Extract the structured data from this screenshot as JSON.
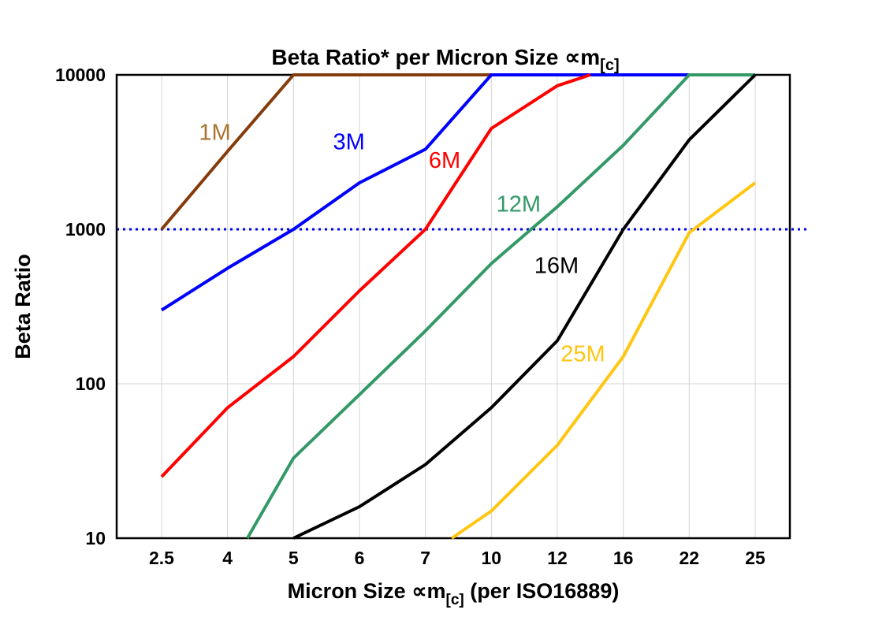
{
  "title": {
    "pre": "Beta Ratio* per Micron Size ",
    "sym": "∝m",
    "sub": "[c]"
  },
  "x_axis": {
    "label_pre": "Micron Size ",
    "label_sym": "∝m",
    "label_sub": "[c]",
    "label_post": " (per ISO16889)",
    "ticks": [
      "2.5",
      "4",
      "5",
      "6",
      "7",
      "10",
      "12",
      "16",
      "22",
      "25"
    ]
  },
  "y_axis": {
    "label": "Beta Ratio",
    "ticks": [
      "10",
      "100",
      "1000",
      "10000"
    ]
  },
  "chart_data": {
    "type": "line",
    "title": "Beta Ratio* per Micron Size ∝m[c]",
    "xlabel": "Micron Size ∝m[c] (per ISO16889)",
    "ylabel": "Beta Ratio",
    "x_scale": "categorical",
    "x_categories": [
      2.5,
      4,
      5,
      6,
      7,
      10,
      12,
      16,
      22,
      25
    ],
    "y_scale": "log",
    "ylim": [
      10,
      10000
    ],
    "y_ticks": [
      10,
      100,
      1000,
      10000
    ],
    "grid": true,
    "grid_color": "#d4d4d4",
    "border_color": "#000000",
    "reference_line": {
      "y": 1000,
      "color": "#0000e0",
      "style": "dotted"
    },
    "series": [
      {
        "name": "1M",
        "color": "#843C0C",
        "label_color": "#A9742F",
        "points": [
          [
            2.5,
            1000
          ],
          [
            4,
            3200
          ],
          [
            5,
            10000
          ],
          [
            10,
            10000
          ]
        ],
        "label": {
          "x": 3.35,
          "y": 3800
        }
      },
      {
        "name": "3M",
        "color": "#0000FF",
        "points": [
          [
            2.5,
            300
          ],
          [
            4,
            560
          ],
          [
            5,
            1000
          ],
          [
            6,
            2000
          ],
          [
            7,
            3300
          ],
          [
            10,
            10000
          ],
          [
            22,
            10000
          ]
        ],
        "label": {
          "x": 5.6,
          "y": 3300
        }
      },
      {
        "name": "6M",
        "color": "#FF0000",
        "points": [
          [
            2.5,
            25
          ],
          [
            4,
            70
          ],
          [
            5,
            150
          ],
          [
            6,
            400
          ],
          [
            7,
            1000
          ],
          [
            10,
            4500
          ],
          [
            12,
            8500
          ],
          [
            14,
            10000
          ]
        ],
        "label": {
          "x": 7.15,
          "y": 2500
        }
      },
      {
        "name": "12M",
        "color": "#339966",
        "points": [
          [
            4.3,
            10
          ],
          [
            5,
            33
          ],
          [
            6,
            85
          ],
          [
            7,
            220
          ],
          [
            10,
            600
          ],
          [
            12,
            1400
          ],
          [
            16,
            3500
          ],
          [
            22,
            10000
          ],
          [
            25,
            10000
          ]
        ],
        "label": {
          "x": 10.15,
          "y": 1300
        }
      },
      {
        "name": "16M",
        "color": "#000000",
        "points": [
          [
            5,
            10
          ],
          [
            6,
            16
          ],
          [
            7,
            30
          ],
          [
            10,
            70
          ],
          [
            12,
            190
          ],
          [
            16,
            1000
          ],
          [
            22,
            3800
          ],
          [
            25,
            10000
          ]
        ],
        "label": {
          "x": 11.3,
          "y": 520
        }
      },
      {
        "name": "25M",
        "color": "#FFC612",
        "points": [
          [
            8.2,
            10
          ],
          [
            10,
            15
          ],
          [
            12,
            40
          ],
          [
            16,
            150
          ],
          [
            22,
            950
          ],
          [
            25,
            2000
          ]
        ],
        "label": {
          "x": 12.2,
          "y": 140
        }
      }
    ]
  }
}
